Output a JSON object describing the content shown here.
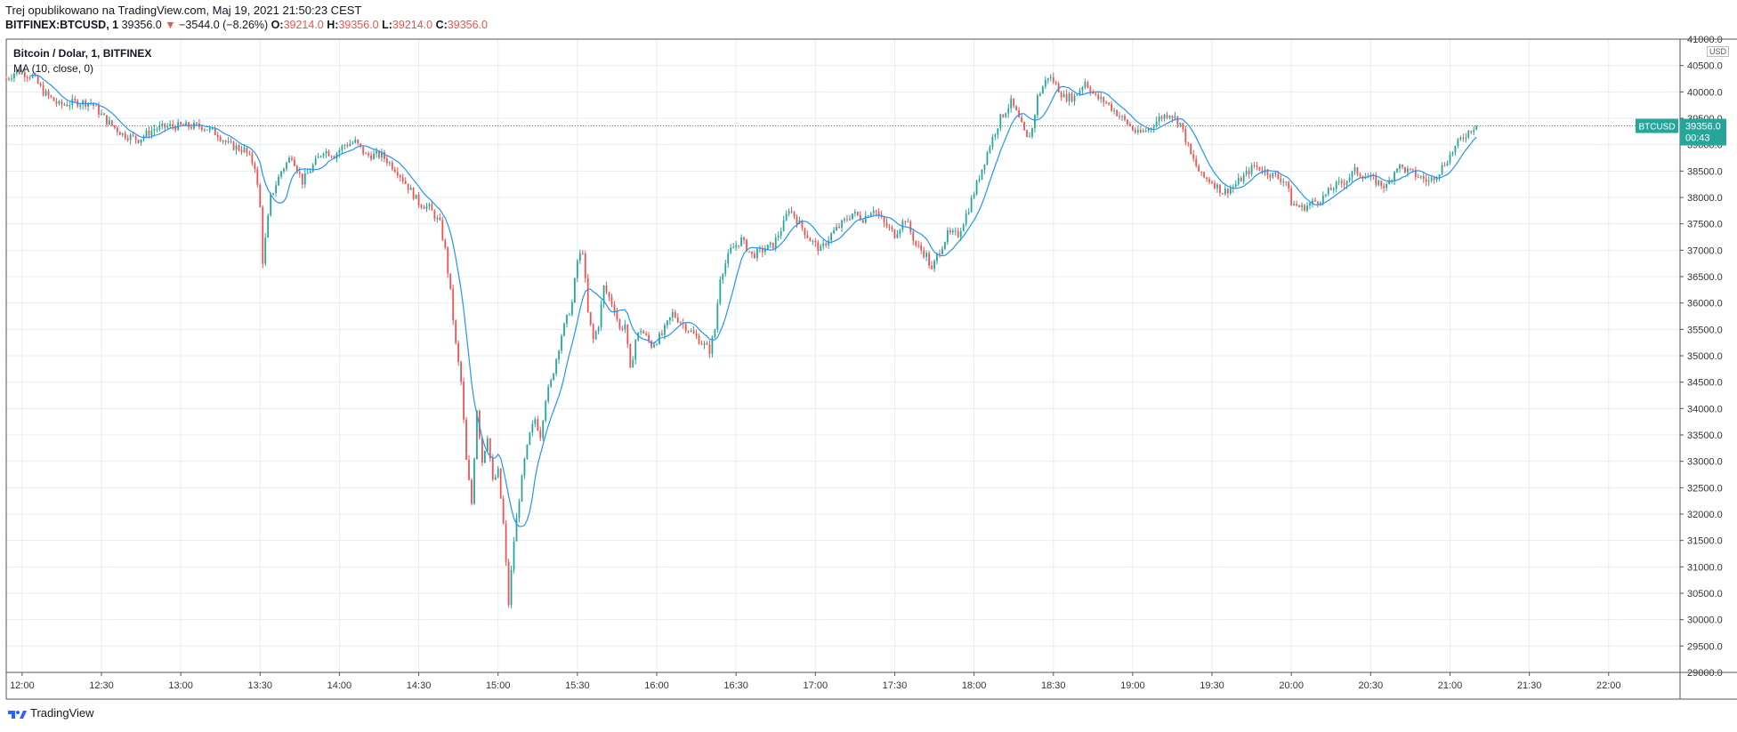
{
  "header": {
    "published_line": "Trej opublikowano na TradingView.com, Maj 19, 2021 21:50:23 CEST",
    "symbol_line": "BITFINEX:BTCUSD, 1",
    "last": "39356.0",
    "arrow": "▼",
    "change": "−3544.0 (−8.26%)",
    "o_label": "O:",
    "o_value": "39214.0",
    "h_label": "H:",
    "h_value": "39356.0",
    "l_label": "L:",
    "l_value": "39214.0",
    "c_label": "C:",
    "c_value": "39356.0"
  },
  "legend": {
    "title": "Bitcoin / Dolar, 1, BITFINEX",
    "indicator": "MA (10, close, 0)"
  },
  "price_tag": {
    "symbol": "BTCUSD",
    "price": "39356.0",
    "countdown": "00:43"
  },
  "currency_button": "USD",
  "footer": {
    "brand": "TradingView"
  },
  "colors": {
    "up": "#26a69a",
    "down": "#ef5350",
    "ma": "#2196f3",
    "grid": "#e8edf3",
    "tag": "#26a69a"
  },
  "chart_data": {
    "type": "candlestick",
    "title": "Bitcoin / Dolar, 1, BITFINEX",
    "series_overlay": "MA (10, close, 0)",
    "ylim": [
      29000,
      41000
    ],
    "yticks": [
      "29000.0",
      "29500.0",
      "30000.0",
      "30500.0",
      "31000.0",
      "31500.0",
      "32000.0",
      "32500.0",
      "33000.0",
      "33500.0",
      "34000.0",
      "34500.0",
      "35000.0",
      "35500.0",
      "36000.0",
      "36500.0",
      "37000.0",
      "37500.0",
      "38000.0",
      "38500.0",
      "39000.0",
      "39500.0",
      "40000.0",
      "40500.0",
      "41000.0"
    ],
    "xticks": [
      "12:00",
      "12:30",
      "13:00",
      "13:30",
      "14:00",
      "14:30",
      "15:00",
      "15:30",
      "16:00",
      "16:30",
      "17:00",
      "17:30",
      "18:00",
      "18:30",
      "19:00",
      "19:30",
      "20:00",
      "20:30",
      "21:00",
      "21:30",
      "22:00"
    ],
    "x_start_minutes": 714,
    "x_end_minutes": 1347,
    "price_path": [
      [
        714,
        40250
      ],
      [
        718,
        40400
      ],
      [
        724,
        40300
      ],
      [
        728,
        40000
      ],
      [
        734,
        39750
      ],
      [
        740,
        39800
      ],
      [
        746,
        39800
      ],
      [
        752,
        39450
      ],
      [
        758,
        39200
      ],
      [
        764,
        39100
      ],
      [
        770,
        39300
      ],
      [
        776,
        39350
      ],
      [
        782,
        39350
      ],
      [
        788,
        39350
      ],
      [
        794,
        39200
      ],
      [
        798,
        39000
      ],
      [
        804,
        38900
      ],
      [
        808,
        38600
      ],
      [
        810,
        37800
      ],
      [
        811,
        36800
      ],
      [
        814,
        38000
      ],
      [
        818,
        38500
      ],
      [
        822,
        38800
      ],
      [
        826,
        38300
      ],
      [
        830,
        38600
      ],
      [
        834,
        38900
      ],
      [
        838,
        38800
      ],
      [
        842,
        39000
      ],
      [
        846,
        39050
      ],
      [
        850,
        38800
      ],
      [
        856,
        38800
      ],
      [
        862,
        38500
      ],
      [
        866,
        38200
      ],
      [
        870,
        37900
      ],
      [
        874,
        37800
      ],
      [
        878,
        37500
      ],
      [
        880,
        37000
      ],
      [
        882,
        36200
      ],
      [
        884,
        35200
      ],
      [
        886,
        34500
      ],
      [
        888,
        33000
      ],
      [
        890,
        32200
      ],
      [
        892,
        34000
      ],
      [
        894,
        33000
      ],
      [
        896,
        33500
      ],
      [
        898,
        32600
      ],
      [
        900,
        32800
      ],
      [
        902,
        31800
      ],
      [
        904,
        30300
      ],
      [
        906,
        31500
      ],
      [
        908,
        32300
      ],
      [
        910,
        33000
      ],
      [
        912,
        33500
      ],
      [
        914,
        33800
      ],
      [
        916,
        33500
      ],
      [
        918,
        34200
      ],
      [
        920,
        34500
      ],
      [
        924,
        35400
      ],
      [
        928,
        36000
      ],
      [
        930,
        36800
      ],
      [
        932,
        37000
      ],
      [
        934,
        35800
      ],
      [
        936,
        35300
      ],
      [
        938,
        35600
      ],
      [
        940,
        36300
      ],
      [
        944,
        35900
      ],
      [
        946,
        35500
      ],
      [
        948,
        35600
      ],
      [
        950,
        34700
      ],
      [
        952,
        35300
      ],
      [
        954,
        35500
      ],
      [
        958,
        35200
      ],
      [
        962,
        35400
      ],
      [
        966,
        35800
      ],
      [
        968,
        35700
      ],
      [
        972,
        35500
      ],
      [
        976,
        35300
      ],
      [
        980,
        35100
      ],
      [
        982,
        35500
      ],
      [
        984,
        36500
      ],
      [
        988,
        37000
      ],
      [
        992,
        37200
      ],
      [
        996,
        36900
      ],
      [
        1000,
        37000
      ],
      [
        1004,
        37100
      ],
      [
        1008,
        37500
      ],
      [
        1010,
        37800
      ],
      [
        1014,
        37500
      ],
      [
        1018,
        37200
      ],
      [
        1022,
        37000
      ],
      [
        1026,
        37300
      ],
      [
        1030,
        37500
      ],
      [
        1034,
        37700
      ],
      [
        1038,
        37600
      ],
      [
        1042,
        37800
      ],
      [
        1046,
        37500
      ],
      [
        1050,
        37300
      ],
      [
        1054,
        37600
      ],
      [
        1058,
        37100
      ],
      [
        1062,
        36900
      ],
      [
        1064,
        36600
      ],
      [
        1066,
        36900
      ],
      [
        1070,
        37300
      ],
      [
        1074,
        37300
      ],
      [
        1078,
        37800
      ],
      [
        1082,
        38400
      ],
      [
        1086,
        39000
      ],
      [
        1090,
        39500
      ],
      [
        1094,
        39800
      ],
      [
        1096,
        39600
      ],
      [
        1100,
        39100
      ],
      [
        1102,
        39300
      ],
      [
        1104,
        39900
      ],
      [
        1108,
        40300
      ],
      [
        1110,
        40200
      ],
      [
        1114,
        39900
      ],
      [
        1118,
        39900
      ],
      [
        1122,
        40200
      ],
      [
        1126,
        39900
      ],
      [
        1130,
        39800
      ],
      [
        1134,
        39600
      ],
      [
        1138,
        39400
      ],
      [
        1142,
        39200
      ],
      [
        1146,
        39300
      ],
      [
        1150,
        39500
      ],
      [
        1154,
        39600
      ],
      [
        1158,
        39400
      ],
      [
        1160,
        39100
      ],
      [
        1162,
        38800
      ],
      [
        1166,
        38400
      ],
      [
        1170,
        38300
      ],
      [
        1174,
        38100
      ],
      [
        1178,
        38200
      ],
      [
        1182,
        38400
      ],
      [
        1186,
        38600
      ],
      [
        1190,
        38500
      ],
      [
        1194,
        38400
      ],
      [
        1198,
        38300
      ],
      [
        1200,
        37900
      ],
      [
        1204,
        37800
      ],
      [
        1208,
        37900
      ],
      [
        1212,
        38000
      ],
      [
        1216,
        38200
      ],
      [
        1220,
        38300
      ],
      [
        1224,
        38500
      ],
      [
        1228,
        38400
      ],
      [
        1232,
        38300
      ],
      [
        1236,
        38200
      ],
      [
        1240,
        38600
      ],
      [
        1244,
        38500
      ],
      [
        1248,
        38400
      ],
      [
        1252,
        38300
      ],
      [
        1256,
        38500
      ],
      [
        1260,
        38800
      ],
      [
        1264,
        39100
      ],
      [
        1268,
        39300
      ],
      [
        1270,
        39356
      ]
    ],
    "last_price": 39356.0
  }
}
